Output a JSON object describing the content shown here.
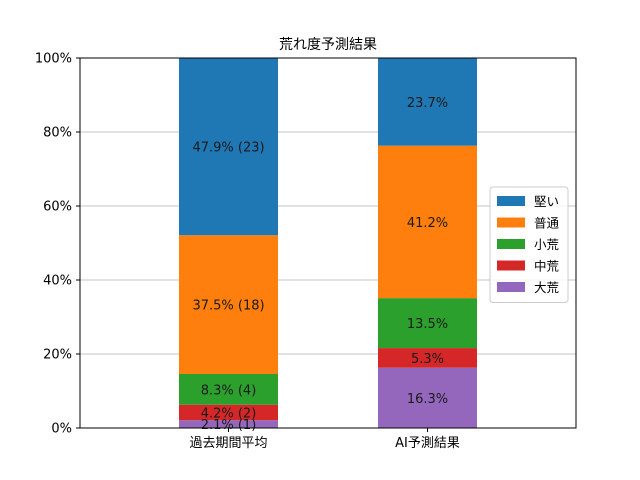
{
  "chart_data": {
    "type": "bar",
    "stacked": true,
    "title": "荒れ度予測結果",
    "xlabel": "",
    "ylabel": "",
    "ylim": [
      0,
      100
    ],
    "y_ticks": [
      "0%",
      "20%",
      "40%",
      "60%",
      "80%",
      "100%"
    ],
    "y_tick_values": [
      0,
      20,
      40,
      60,
      80,
      100
    ],
    "grid": "y",
    "legend_position": "right",
    "categories": [
      "過去期間平均",
      "AI予測結果"
    ],
    "series": [
      {
        "name": "大荒",
        "color": "#9467bd",
        "values": [
          2.1,
          16.3
        ],
        "labels": [
          "2.1% (1)",
          "16.3%"
        ]
      },
      {
        "name": "中荒",
        "color": "#d62728",
        "values": [
          4.2,
          5.3
        ],
        "labels": [
          "4.2% (2)",
          "5.3%"
        ]
      },
      {
        "name": "小荒",
        "color": "#2ca02c",
        "values": [
          8.3,
          13.5
        ],
        "labels": [
          "8.3% (4)",
          "13.5%"
        ]
      },
      {
        "name": "普通",
        "color": "#ff7f0e",
        "values": [
          37.5,
          41.2
        ],
        "labels": [
          "37.5% (18)",
          "41.2%"
        ]
      },
      {
        "name": "堅い",
        "color": "#1f77b4",
        "values": [
          47.9,
          23.7
        ],
        "labels": [
          "47.9% (23)",
          "23.7%"
        ]
      }
    ],
    "legend_order": [
      "堅い",
      "普通",
      "小荒",
      "中荒",
      "大荒"
    ]
  }
}
